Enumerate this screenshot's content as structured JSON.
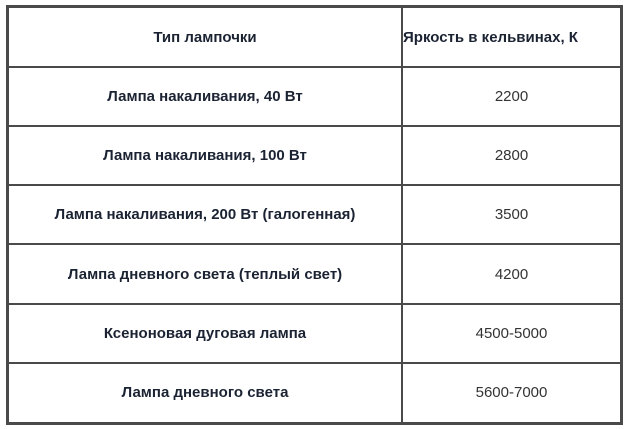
{
  "table": {
    "headers": [
      "Тип лампочки",
      "Яркость в кельвинах, К"
    ],
    "rows": [
      {
        "type": "Лампа накаливания, 40 Вт",
        "kelvin": "2200"
      },
      {
        "type": "Лампа накаливания, 100 Вт",
        "kelvin": "2800"
      },
      {
        "type": "Лампа накаливания, 200 Вт (галогенная)",
        "kelvin": "3500"
      },
      {
        "type": "Лампа дневного света (теплый свет)",
        "kelvin": "4200"
      },
      {
        "type": "Ксеноновая дуговая лампа",
        "kelvin": "4500-5000"
      },
      {
        "type": "Лампа дневного света",
        "kelvin": "5600-7000"
      }
    ]
  }
}
